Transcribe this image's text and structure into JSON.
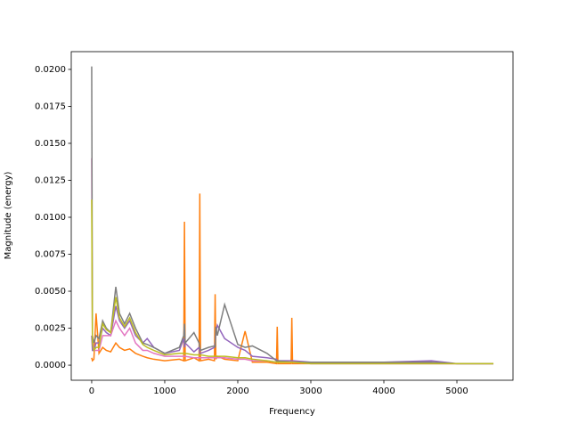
{
  "chart_data": {
    "type": "line",
    "x_label": "Frequency",
    "y_label": "Magnitude (energy)",
    "x": [
      0,
      10,
      30,
      60,
      100,
      150,
      200,
      260,
      330,
      380,
      450,
      520,
      600,
      700,
      760,
      850,
      1000,
      1200,
      1260,
      1270,
      1280,
      1400,
      1470,
      1480,
      1490,
      1600,
      1680,
      1690,
      1700,
      1720,
      1820,
      2000,
      2100,
      2200,
      2400,
      2530,
      2540,
      2550,
      2730,
      2740,
      2750,
      3000,
      3500,
      4000,
      4650,
      5000,
      5500
    ],
    "series": [
      {
        "color": "#ff7f0e",
        "values": [
          0.0005,
          0.0003,
          0.0004,
          0.0035,
          0.0008,
          0.0012,
          0.001,
          0.0009,
          0.0015,
          0.0012,
          0.001,
          0.0011,
          0.0008,
          0.0006,
          0.0005,
          0.0004,
          0.0003,
          0.0004,
          0.0003,
          0.0097,
          0.0003,
          0.0005,
          0.0003,
          0.0116,
          0.0003,
          0.0004,
          0.0003,
          0.0048,
          0.0004,
          0.0006,
          0.0004,
          0.0003,
          0.0023,
          0.0002,
          0.0002,
          0.0001,
          0.0026,
          0.0001,
          0.0001,
          0.0032,
          0.0001,
          0.0001,
          0.0001,
          0.0001,
          0.0001,
          0.0001,
          0.0001
        ]
      },
      {
        "color": "#9467bd",
        "values": [
          0.002,
          0.001,
          0.001,
          0.0015,
          0.0015,
          0.0025,
          0.0022,
          0.002,
          0.004,
          0.003,
          0.0025,
          0.003,
          0.002,
          0.0015,
          0.0018,
          0.0012,
          0.0008,
          0.001,
          0.0018,
          0.0012,
          0.0015,
          0.0009,
          0.0012,
          0.0008,
          0.0008,
          0.001,
          0.0012,
          0.0015,
          0.0022,
          0.0027,
          0.0018,
          0.0012,
          0.001,
          0.0006,
          0.0005,
          0.0004,
          0.0003,
          0.0003,
          0.0003,
          0.0003,
          0.0003,
          0.0002,
          0.0002,
          0.0002,
          0.0003,
          0.0001,
          0.0001
        ]
      },
      {
        "color": "#e377c2",
        "values": [
          0.014,
          0.002,
          0.001,
          0.001,
          0.001,
          0.002,
          0.002,
          0.002,
          0.003,
          0.0025,
          0.002,
          0.0025,
          0.0015,
          0.001,
          0.001,
          0.0008,
          0.0006,
          0.0006,
          0.0006,
          0.0006,
          0.0006,
          0.0005,
          0.0005,
          0.0005,
          0.0005,
          0.0005,
          0.0005,
          0.0005,
          0.0005,
          0.0005,
          0.0005,
          0.0004,
          0.0004,
          0.0003,
          0.0003,
          0.0002,
          0.0002,
          0.0002,
          0.0002,
          0.0002,
          0.0002,
          0.0001,
          0.0001,
          0.0001,
          0.0001,
          0.0001,
          0.0001
        ]
      },
      {
        "color": "#7f7f7f",
        "values": [
          0.0202,
          0.002,
          0.0015,
          0.002,
          0.0018,
          0.003,
          0.0025,
          0.0022,
          0.0053,
          0.0035,
          0.0028,
          0.0035,
          0.0025,
          0.0015,
          0.0014,
          0.0012,
          0.0008,
          0.0012,
          0.002,
          0.0028,
          0.0015,
          0.0022,
          0.0015,
          0.0012,
          0.001,
          0.0012,
          0.0013,
          0.0012,
          0.0026,
          0.002,
          0.0041,
          0.0014,
          0.0012,
          0.0013,
          0.0008,
          0.0003,
          0.0003,
          0.0003,
          0.0002,
          0.0002,
          0.0002,
          0.0002,
          0.0002,
          0.0002,
          0.0002,
          0.0001,
          0.0001
        ]
      },
      {
        "color": "#bcbd22",
        "values": [
          0.0112,
          0.0015,
          0.001,
          0.0012,
          0.0012,
          0.0028,
          0.0024,
          0.0022,
          0.0046,
          0.0032,
          0.0026,
          0.0032,
          0.0022,
          0.0014,
          0.0012,
          0.001,
          0.0007,
          0.0008,
          0.0008,
          0.0008,
          0.0008,
          0.0007,
          0.0007,
          0.0007,
          0.0007,
          0.0006,
          0.0006,
          0.0006,
          0.0006,
          0.0006,
          0.0006,
          0.0005,
          0.0005,
          0.0004,
          0.0003,
          0.0002,
          0.0002,
          0.0002,
          0.0002,
          0.0002,
          0.0002,
          0.0001,
          0.0001,
          0.0001,
          0.0001,
          0.0001,
          0.0001
        ]
      }
    ],
    "xlim": [
      -280,
      5768
    ],
    "ylim": [
      -0.00102,
      0.0212
    ],
    "xticks": [
      0,
      1000,
      2000,
      3000,
      4000,
      5000
    ],
    "yticks": [
      {
        "value": 0,
        "label": "0.0000"
      },
      {
        "value": 0.0025,
        "label": "0.0025"
      },
      {
        "value": 0.005,
        "label": "0.0050"
      },
      {
        "value": 0.0075,
        "label": "0.0075"
      },
      {
        "value": 0.01,
        "label": "0.0100"
      },
      {
        "value": 0.0125,
        "label": "0.0125"
      },
      {
        "value": 0.015,
        "label": "0.0150"
      },
      {
        "value": 0.0175,
        "label": "0.0175"
      },
      {
        "value": 0.02,
        "label": "0.0200"
      }
    ]
  }
}
